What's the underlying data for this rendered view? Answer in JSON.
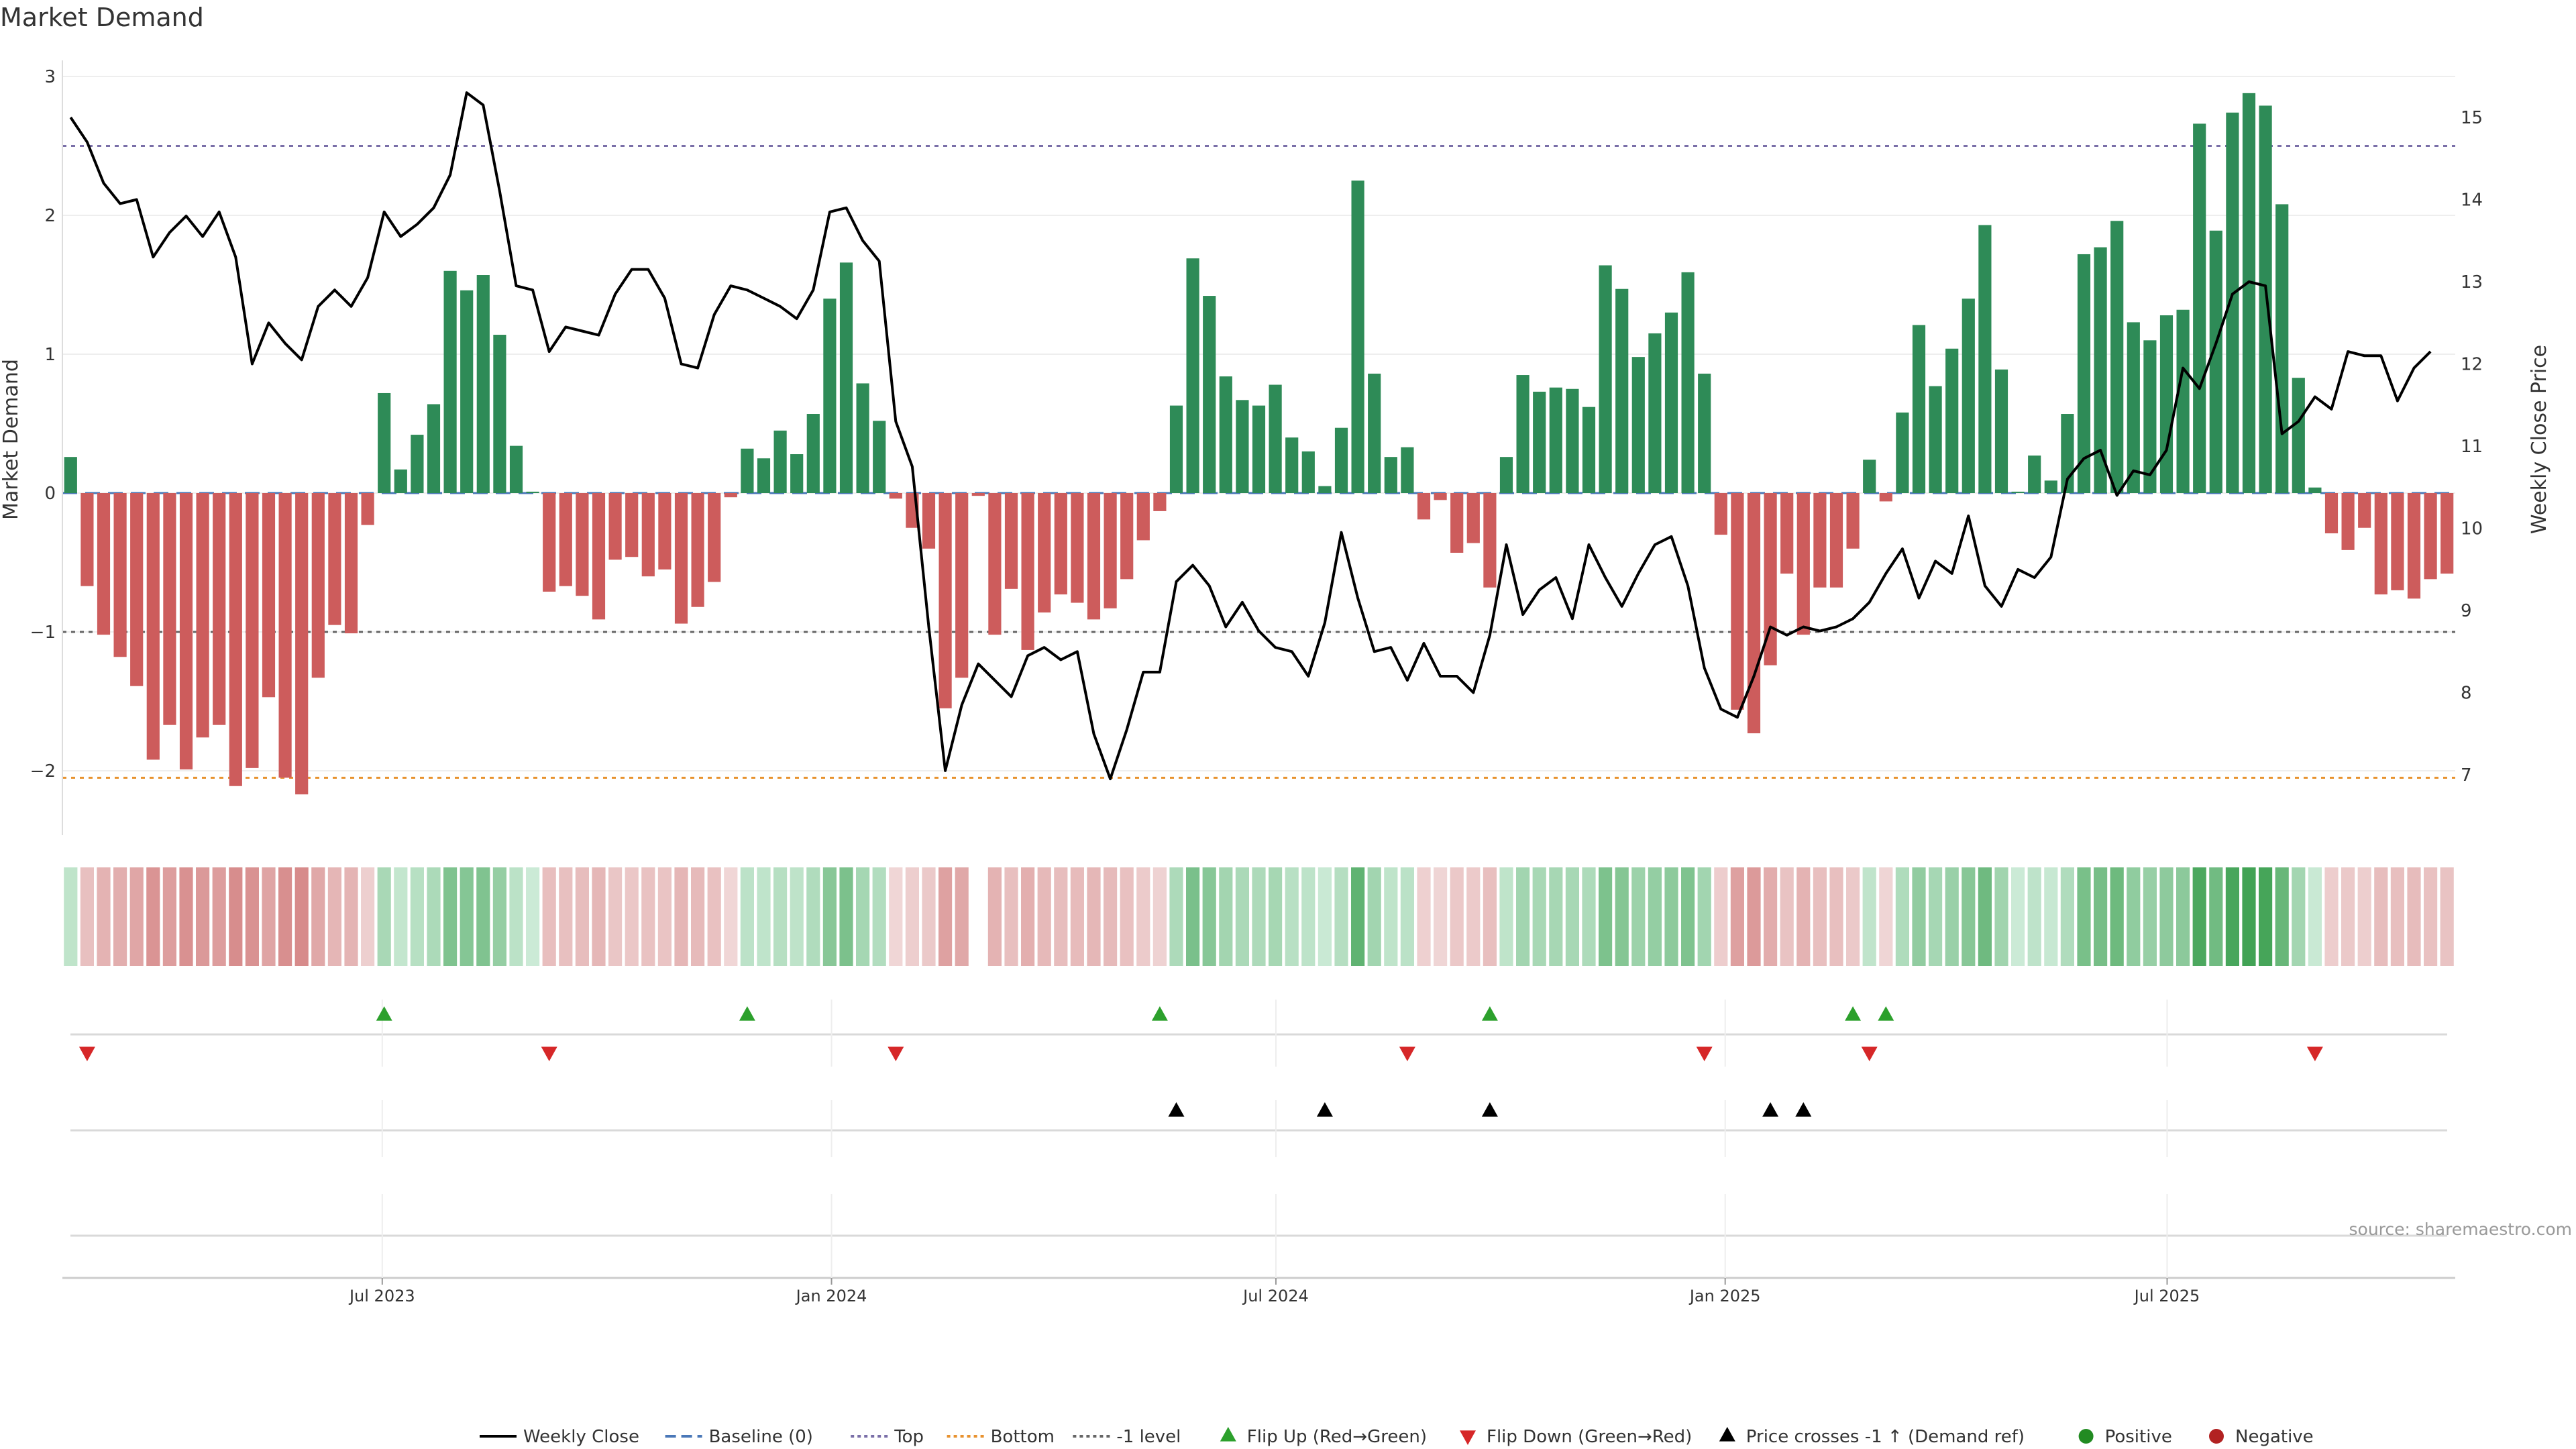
{
  "chart_data": {
    "type": "bar",
    "title": "Market Demand",
    "ylabel": "Market Demand",
    "y2label": "Weekly Close Price",
    "ylim": [
      -2.45,
      3.05
    ],
    "y2lim": [
      5.95,
      15.8
    ],
    "yticks": [
      -2,
      -1,
      0,
      1,
      2,
      3
    ],
    "y2ticks": [
      7,
      8,
      9,
      10,
      11,
      12,
      13,
      14,
      15
    ],
    "date_start": "2023-02-20",
    "date_end": "2025-10-27",
    "xticks": [
      {
        "date": "2023-07-01",
        "label": "Jul 2023"
      },
      {
        "date": "2024-01-01",
        "label": "Jan 2024"
      },
      {
        "date": "2024-07-01",
        "label": "Jul 2024"
      },
      {
        "date": "2025-01-01",
        "label": "Jan 2025"
      },
      {
        "date": "2025-07-01",
        "label": "Jul 2025"
      }
    ],
    "reference_lines": [
      {
        "name": "Baseline (0)",
        "value": 0,
        "color": "#4a78b8",
        "dash": "dashed"
      },
      {
        "name": "Top",
        "value": 2.5,
        "color": "#7a6fa8",
        "dash": "dotted"
      },
      {
        "name": "Bottom",
        "value": -2.05,
        "color": "#e8922f",
        "dash": "dotted"
      },
      {
        "name": "-1 level",
        "value": -1,
        "color": "#666666",
        "dash": "dotted"
      }
    ],
    "demand": [
      0.26,
      -0.67,
      -1.02,
      -1.18,
      -1.39,
      -1.92,
      -1.67,
      -1.99,
      -1.76,
      -1.67,
      -2.11,
      -1.98,
      -1.47,
      -2.05,
      -2.17,
      -1.33,
      -0.95,
      -1.01,
      -0.23,
      0.72,
      0.17,
      0.42,
      0.64,
      1.6,
      1.46,
      1.57,
      1.14,
      0.34,
      0.01,
      -0.71,
      -0.67,
      -0.74,
      -0.91,
      -0.48,
      -0.46,
      -0.6,
      -0.55,
      -0.94,
      -0.82,
      -0.64,
      -0.03,
      0.32,
      0.25,
      0.45,
      0.28,
      0.57,
      1.4,
      1.66,
      0.79,
      0.52,
      -0.04,
      -0.25,
      -0.4,
      -1.55,
      -1.33,
      -0.02,
      -1.02,
      -0.69,
      -1.13,
      -0.86,
      -0.73,
      -0.79,
      -0.91,
      -0.83,
      -0.62,
      -0.34,
      -0.13,
      0.63,
      1.69,
      1.42,
      0.84,
      0.67,
      0.63,
      0.78,
      0.4,
      0.3,
      0.05,
      0.47,
      2.25,
      0.86,
      0.26,
      0.33,
      -0.19,
      -0.05,
      -0.43,
      -0.36,
      -0.68,
      0.26,
      0.85,
      0.73,
      0.76,
      0.75,
      0.62,
      1.64,
      1.47,
      0.98,
      1.15,
      1.3,
      1.59,
      0.86,
      -0.3,
      -1.56,
      -1.73,
      -1.24,
      -0.58,
      -1.02,
      -0.68,
      -0.68,
      -0.4,
      0.24,
      -0.06,
      0.58,
      1.21,
      0.77,
      1.04,
      1.4,
      1.93,
      0.89,
      0.01,
      0.27,
      0.09,
      0.57,
      1.72,
      1.77,
      1.96,
      1.23,
      1.1,
      1.28,
      1.32,
      2.66,
      1.89,
      2.74,
      2.88,
      2.79,
      2.08,
      0.83,
      0.04,
      -0.29,
      -0.41,
      -0.25,
      -0.73,
      -0.7,
      -0.76,
      -0.62,
      -0.58
    ],
    "weekly_close": [
      15.0,
      14.7,
      14.2,
      13.95,
      14.0,
      13.3,
      13.6,
      13.8,
      13.55,
      13.85,
      13.3,
      12.0,
      12.5,
      12.25,
      12.05,
      12.7,
      12.9,
      12.7,
      13.05,
      13.85,
      13.55,
      13.7,
      13.9,
      14.3,
      15.3,
      15.15,
      14.1,
      12.95,
      12.9,
      12.15,
      12.45,
      12.4,
      12.35,
      12.85,
      13.15,
      13.15,
      12.8,
      12.0,
      11.95,
      12.6,
      12.95,
      12.9,
      12.8,
      12.7,
      12.55,
      12.9,
      13.85,
      13.9,
      13.5,
      13.25,
      11.3,
      10.75,
      8.8,
      7.05,
      7.85,
      8.35,
      8.15,
      7.95,
      8.45,
      8.55,
      8.4,
      8.5,
      7.5,
      6.95,
      7.55,
      8.25,
      8.25,
      9.35,
      9.55,
      9.3,
      8.8,
      9.1,
      8.75,
      8.55,
      8.5,
      8.2,
      8.85,
      9.95,
      9.15,
      8.5,
      8.55,
      8.15,
      8.6,
      8.2,
      8.2,
      8.0,
      8.7,
      9.8,
      8.95,
      9.25,
      9.4,
      8.9,
      9.8,
      9.4,
      9.05,
      9.45,
      9.8,
      9.9,
      9.3,
      8.3,
      7.8,
      7.7,
      8.2,
      8.8,
      8.7,
      8.8,
      8.75,
      8.8,
      8.9,
      9.1,
      9.45,
      9.75,
      9.15,
      9.6,
      9.45,
      10.15,
      9.3,
      9.05,
      9.5,
      9.4,
      9.65,
      10.6,
      10.85,
      10.95,
      10.4,
      10.7,
      10.65,
      10.95,
      11.95,
      11.7,
      12.25,
      12.85,
      13.0,
      12.95,
      11.15,
      11.3,
      11.6,
      11.45,
      12.15,
      12.1,
      12.1,
      11.55,
      11.95,
      12.15
    ],
    "flip_up_weeks": [
      19,
      41,
      66,
      86,
      108,
      110
    ],
    "flip_down_weeks": [
      1,
      29,
      50,
      81,
      99,
      109,
      136
    ],
    "price_cross_weeks": [
      67,
      76,
      86,
      103,
      105
    ],
    "legend": [
      "Weekly Close",
      "Baseline (0)",
      "Top",
      "Bottom",
      "-1 level",
      "Flip Up (Red→Green)",
      "Flip Down (Green→Red)",
      "Price crosses -1 ↑ (Demand ref)",
      "Positive",
      "Negative"
    ],
    "colors": {
      "positive": "#2e8b57",
      "negative": "#cd5c5c",
      "price": "#000000",
      "flip_up": "#2ca02c",
      "flip_down": "#d62728",
      "cross": "#000000",
      "legend_positive": "#228b22",
      "legend_negative": "#b22222"
    }
  },
  "source_text": "source: sharemaestro.com"
}
